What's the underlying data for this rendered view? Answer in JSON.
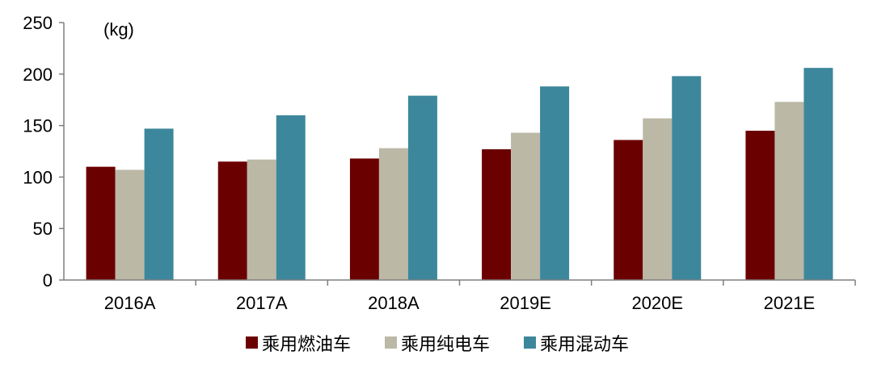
{
  "chart_data": {
    "type": "bar",
    "title": "",
    "unit_label": "(kg)",
    "categories": [
      "2016A",
      "2017A",
      "2018A",
      "2019E",
      "2020E",
      "2021E"
    ],
    "series": [
      {
        "name": "乘用燃油车",
        "color": "#6b0000",
        "values": [
          110,
          115,
          118,
          127,
          136,
          145
        ]
      },
      {
        "name": "乘用纯电车",
        "color": "#bbb8a5",
        "values": [
          107,
          117,
          128,
          143,
          157,
          173
        ]
      },
      {
        "name": "乘用混动车",
        "color": "#3d879c",
        "values": [
          147,
          160,
          179,
          188,
          198,
          206
        ]
      }
    ],
    "ylim": [
      0,
      250
    ],
    "yticks": [
      0,
      50,
      100,
      150,
      200,
      250
    ],
    "grid": false,
    "legend_position": "bottom"
  }
}
